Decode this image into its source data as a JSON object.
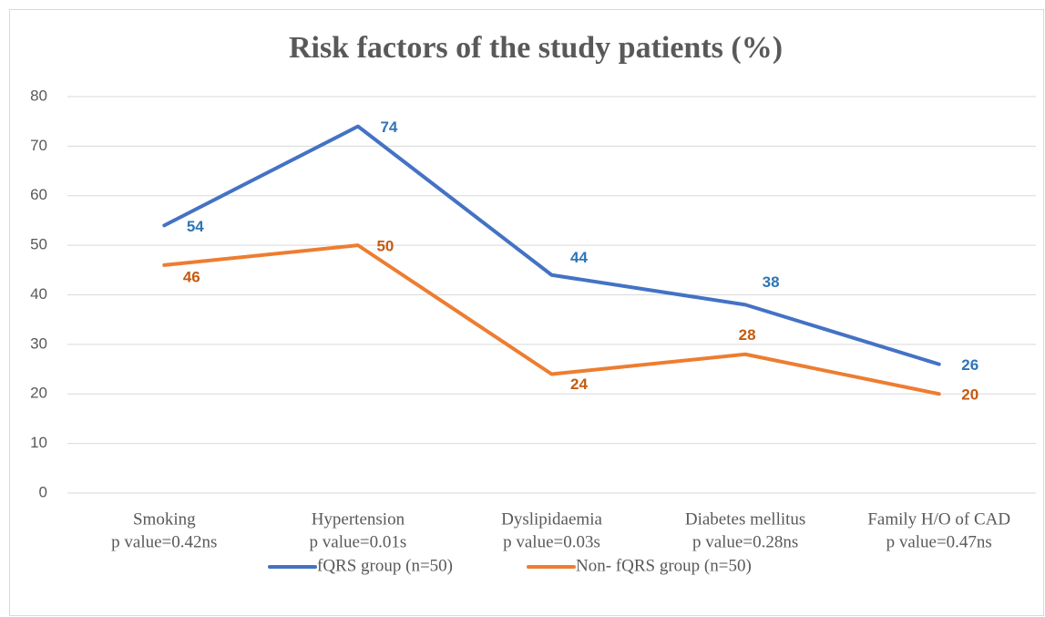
{
  "chart_data": {
    "type": "line",
    "title": "Risk factors of the study patients (%)",
    "categories": [
      "Smoking",
      "Hypertension",
      "Dyslipidaemia",
      "Diabetes mellitus",
      "Family H/O of CAD"
    ],
    "category_sublabels": [
      "p value=0.42ns",
      "p value=0.01s",
      "p value=0.03s",
      "p value=0.28ns",
      "p value=0.47ns"
    ],
    "series": [
      {
        "name": "fQRS group (n=50)",
        "color": "#4472c4",
        "label_color": "#2e75b6",
        "values": [
          54,
          74,
          44,
          38,
          26
        ]
      },
      {
        "name": "Non- fQRS group (n=50)",
        "color": "#ed7d31",
        "label_color": "#c55a11",
        "values": [
          46,
          50,
          24,
          28,
          20
        ]
      }
    ],
    "ylim": [
      0,
      80
    ],
    "yticks": [
      0,
      10,
      20,
      30,
      40,
      50,
      60,
      70,
      80
    ],
    "grid": true,
    "legend": "bottom"
  }
}
